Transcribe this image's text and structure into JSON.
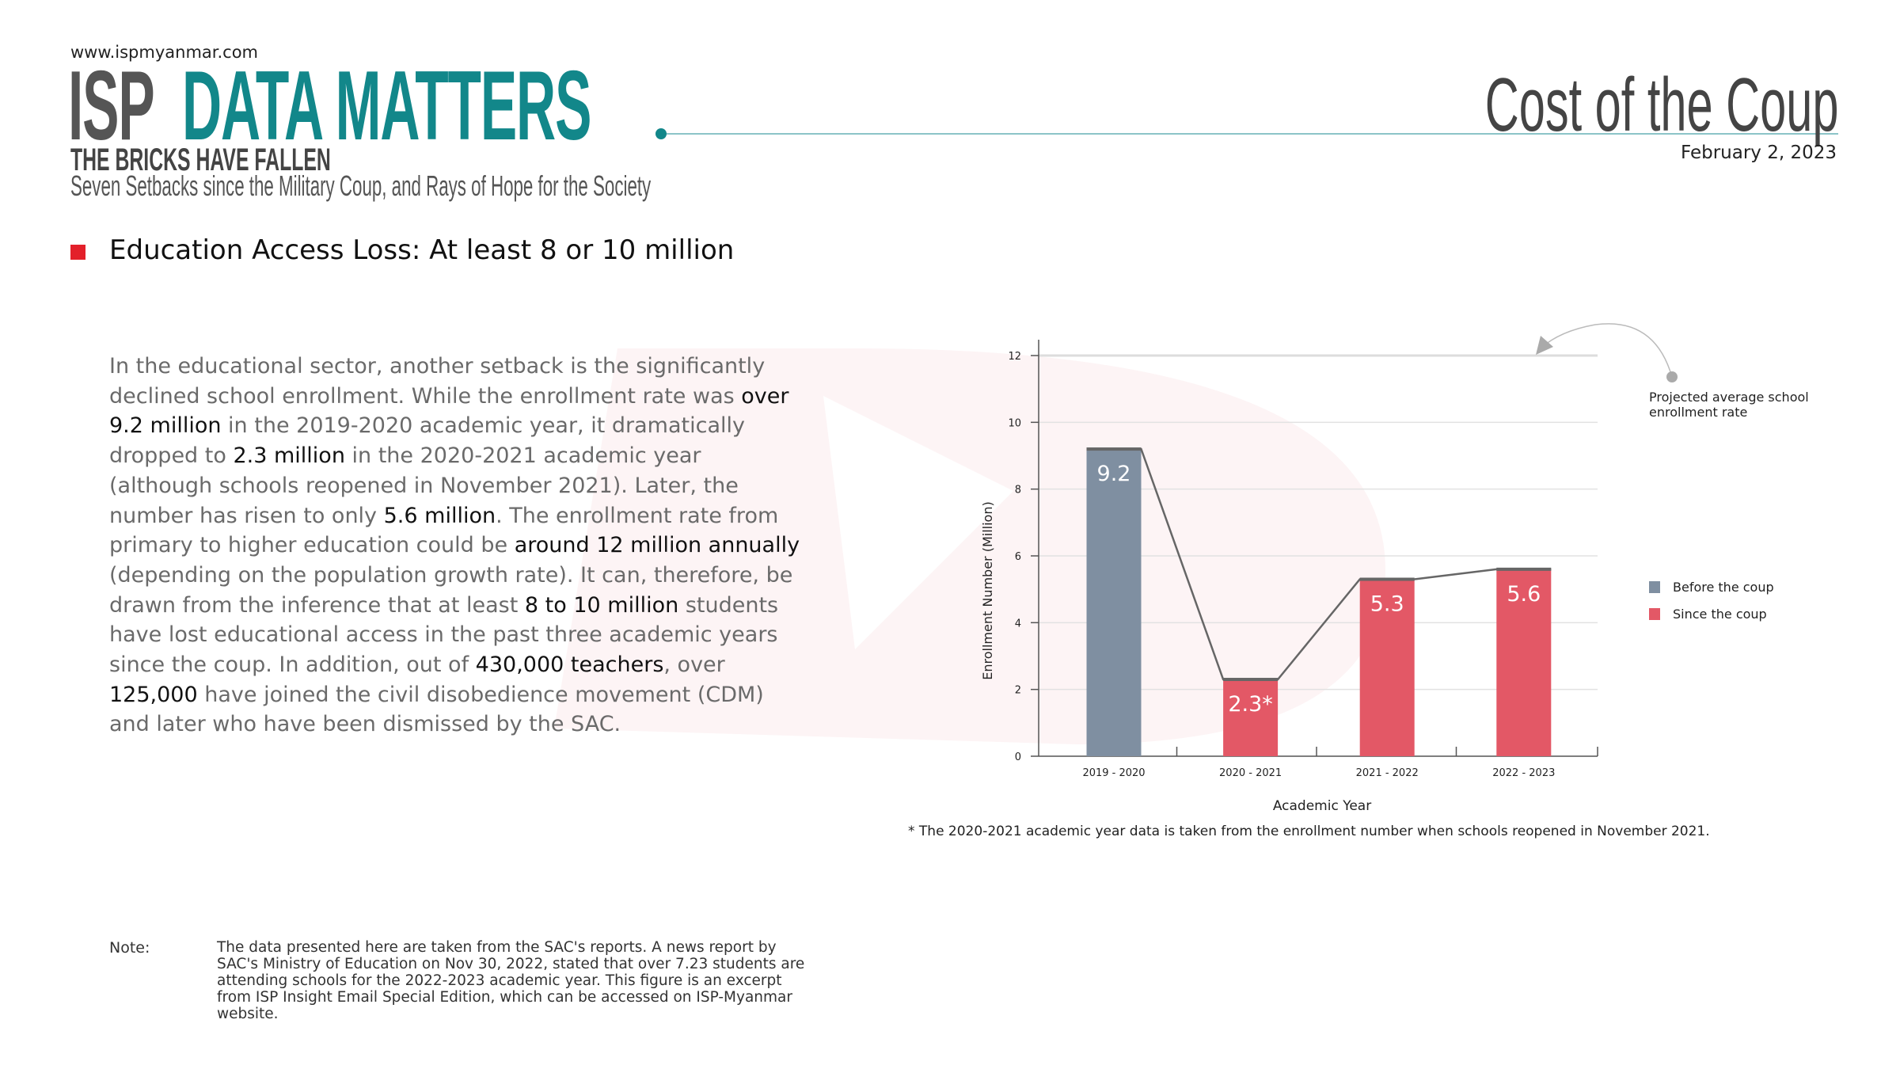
{
  "header": {
    "site": "www.ispmyanmar.com",
    "brand_isp": "ISP",
    "brand_title": "DATA MATTERS",
    "series_title": "THE BRICKS HAVE FALLEN",
    "subtitle": "Seven Setbacks since the Military Coup, and Rays of Hope for the Society",
    "report_title": "Cost of the Coup",
    "date": "February 2, 2023"
  },
  "section": {
    "title": "Education Access Loss: At least 8 or 10 million",
    "body": [
      {
        "t": "In the educational sector, another setback is the significantly declined school enrollment. While the enrollment rate was ",
        "b": false
      },
      {
        "t": "over 9.2 million",
        "b": true
      },
      {
        "t": " in the 2019-2020 academic year, it dramatically dropped to ",
        "b": false
      },
      {
        "t": "2.3 million",
        "b": true
      },
      {
        "t": " in the 2020-2021 academic year (although schools reopened in November 2021). Later, the number has risen to only ",
        "b": false
      },
      {
        "t": "5.6 million",
        "b": true
      },
      {
        "t": ". The enrollment rate from primary to higher education could be ",
        "b": false
      },
      {
        "t": "around 12 million annually",
        "b": true
      },
      {
        "t": " (depending on the population growth rate). It can, therefore, be drawn from the inference that at least ",
        "b": false
      },
      {
        "t": "8 to 10 million",
        "b": true
      },
      {
        "t": " students have lost educational access in the past three academic years since the coup. In addition, out of ",
        "b": false
      },
      {
        "t": "430,000 teachers",
        "b": true
      },
      {
        "t": ", over ",
        "b": false
      },
      {
        "t": "125,000",
        "b": true
      },
      {
        "t": " have joined the civil disobedience movement (CDM) and later who have been dismissed by the SAC.",
        "b": false
      }
    ]
  },
  "note": {
    "label": "Note:",
    "text": "The data presented here are taken from the SAC's reports. A news report by SAC's Ministry of Education on Nov 30, 2022, stated that over 7.23 students are attending schools for the 2022-2023 academic year. This figure is an excerpt from ISP Insight Email Special Edition, which can be accessed on ISP-Myanmar website."
  },
  "colors": {
    "before": "#7f8fa1",
    "since": "#e35866",
    "teal": "#12878a",
    "accent": "#e3202a"
  },
  "chart_data": {
    "type": "bar",
    "categories": [
      "2019 - 2020",
      "2020 - 2021",
      "2021 - 2022",
      "2022 - 2023"
    ],
    "values": [
      9.2,
      2.3,
      5.3,
      5.6
    ],
    "data_labels": [
      "9.2",
      "2.3*",
      "5.3",
      "5.6"
    ],
    "series_group": [
      "Before the coup",
      "Since the coup",
      "Since the coup",
      "Since the coup"
    ],
    "xlabel": "Academic Year",
    "ylabel": "Enrollment Number (Million)",
    "ylim": [
      0,
      12
    ],
    "yticks": [
      "0",
      "2",
      "4",
      "6",
      "8",
      "10",
      "12"
    ],
    "grid": true,
    "legend": [
      {
        "name": "Before the coup",
        "color": "#7f8fa1"
      },
      {
        "name": "Since the coup",
        "color": "#e35866"
      }
    ],
    "legend_position": "right",
    "projected_value": 12,
    "annotation": [
      "Projected average school",
      "enrollment rate"
    ],
    "footnote": "* The 2020-2021 academic year data is taken from the enrollment number when schools reopened in November 2021."
  }
}
